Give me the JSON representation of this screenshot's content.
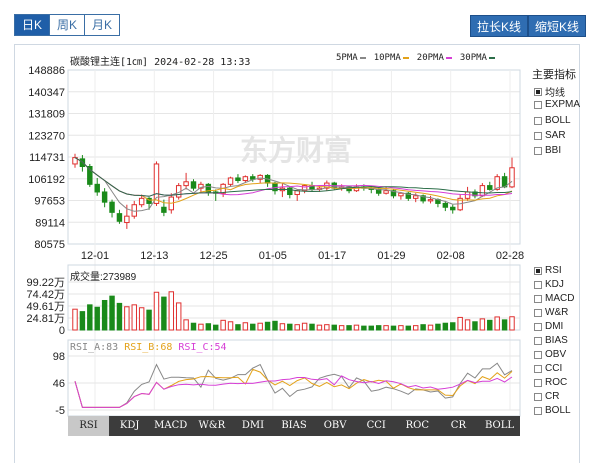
{
  "tabs": [
    {
      "label": "日K",
      "active": true
    },
    {
      "label": "周K",
      "active": false
    },
    {
      "label": "月K",
      "active": false
    }
  ],
  "buttons": {
    "stretch": "拉长K线",
    "shrink": "缩短K线"
  },
  "header": {
    "title": "碳酸锂主连[1㎝] 2024-02-28 13:33"
  },
  "ma_legend": [
    {
      "label": "5PMA",
      "color": "#888888"
    },
    {
      "label": "10PMA",
      "color": "#e3a21a"
    },
    {
      "label": "20PMA",
      "color": "#d63fd6"
    },
    {
      "label": "30PMA",
      "color": "#2c6e49"
    }
  ],
  "watermark": "东方财富",
  "indicators_panel": {
    "title": "主要指标",
    "items": [
      {
        "label": "均线",
        "checked": true
      },
      {
        "label": "EXPMA",
        "checked": false
      },
      {
        "label": "BOLL",
        "checked": false
      },
      {
        "label": "SAR",
        "checked": false
      },
      {
        "label": "BBI",
        "checked": false
      }
    ]
  },
  "sub_indicators": [
    {
      "label": "RSI",
      "checked": true
    },
    {
      "label": "KDJ",
      "checked": false
    },
    {
      "label": "MACD",
      "checked": false
    },
    {
      "label": "W&R",
      "checked": false
    },
    {
      "label": "DMI",
      "checked": false
    },
    {
      "label": "BIAS",
      "checked": false
    },
    {
      "label": "OBV",
      "checked": false
    },
    {
      "label": "CCI",
      "checked": false
    },
    {
      "label": "ROC",
      "checked": false
    },
    {
      "label": "CR",
      "checked": false
    },
    {
      "label": "BOLL",
      "checked": false
    }
  ],
  "indicator_tabs": [
    "RSI",
    "KDJ",
    "MACD",
    "W&R",
    "DMI",
    "BIAS",
    "OBV",
    "CCI",
    "ROC",
    "CR",
    "BOLL"
  ],
  "active_indicator_tab": "RSI",
  "rsi_legend": [
    {
      "label": "RSI_A:83",
      "color": "#888888"
    },
    {
      "label": "RSI_B:68",
      "color": "#e3a21a"
    },
    {
      "label": "RSI_C:54",
      "color": "#d63fd6"
    }
  ],
  "volume_label": "成交量:273989",
  "chart_data": {
    "type": "candlestick",
    "price_ticks": [
      "148886",
      "140347",
      "131809",
      "123270",
      "114731",
      "106192",
      "97653",
      "89114",
      "80575"
    ],
    "price_range": [
      80575,
      148886
    ],
    "date_ticks": [
      "12-01",
      "12-13",
      "12-25",
      "01-05",
      "01-17",
      "01-29",
      "02-08",
      "02-28"
    ],
    "volume_ticks": [
      "99.22万",
      "74.42万",
      "49.61万",
      "24.81万",
      "0"
    ],
    "volume_range": [
      0,
      992200
    ],
    "rsi_ticks": [
      "98",
      "46",
      "-5"
    ],
    "rsi_range": [
      -5,
      98
    ],
    "candles": [
      {
        "o": 112000,
        "c": 114500,
        "h": 116000,
        "l": 110500,
        "v": 430000
      },
      {
        "o": 114000,
        "c": 111000,
        "h": 115500,
        "l": 109000,
        "v": 380000
      },
      {
        "o": 111000,
        "c": 104000,
        "h": 112000,
        "l": 103000,
        "v": 520000
      },
      {
        "o": 104000,
        "c": 101000,
        "h": 106500,
        "l": 99500,
        "v": 470000
      },
      {
        "o": 101000,
        "c": 97000,
        "h": 102500,
        "l": 95000,
        "v": 610000
      },
      {
        "o": 97000,
        "c": 93000,
        "h": 98000,
        "l": 91000,
        "v": 700000
      },
      {
        "o": 92500,
        "c": 89500,
        "h": 94000,
        "l": 88500,
        "v": 550000
      },
      {
        "o": 89000,
        "c": 91500,
        "h": 96000,
        "l": 86500,
        "v": 480000
      },
      {
        "o": 91500,
        "c": 96000,
        "h": 97500,
        "l": 90500,
        "v": 520000
      },
      {
        "o": 96000,
        "c": 98500,
        "h": 100000,
        "l": 95000,
        "v": 460000
      },
      {
        "o": 98500,
        "c": 96500,
        "h": 99000,
        "l": 94000,
        "v": 410000
      },
      {
        "o": 96500,
        "c": 112000,
        "h": 113000,
        "l": 95500,
        "v": 780000
      },
      {
        "o": 95000,
        "c": 93000,
        "h": 98000,
        "l": 91500,
        "v": 680000
      },
      {
        "o": 94000,
        "c": 99000,
        "h": 100500,
        "l": 92500,
        "v": 790000
      },
      {
        "o": 99000,
        "c": 103500,
        "h": 104500,
        "l": 98000,
        "v": 560000
      },
      {
        "o": 103500,
        "c": 105000,
        "h": 108500,
        "l": 102000,
        "v": 210000
      },
      {
        "o": 105000,
        "c": 102500,
        "h": 106000,
        "l": 101500,
        "v": 140000
      },
      {
        "o": 102500,
        "c": 104000,
        "h": 105000,
        "l": 100500,
        "v": 120000
      },
      {
        "o": 104000,
        "c": 101000,
        "h": 104500,
        "l": 99500,
        "v": 130000
      },
      {
        "o": 101000,
        "c": 100500,
        "h": 102000,
        "l": 97500,
        "v": 100000
      },
      {
        "o": 100500,
        "c": 104000,
        "h": 104500,
        "l": 99000,
        "v": 200000
      },
      {
        "o": 104000,
        "c": 106500,
        "h": 107000,
        "l": 103000,
        "v": 170000
      },
      {
        "o": 106500,
        "c": 105500,
        "h": 108000,
        "l": 104500,
        "v": 110000
      },
      {
        "o": 105500,
        "c": 107000,
        "h": 107500,
        "l": 104500,
        "v": 150000
      },
      {
        "o": 107000,
        "c": 106000,
        "h": 108000,
        "l": 105000,
        "v": 120000
      },
      {
        "o": 106000,
        "c": 107500,
        "h": 108000,
        "l": 104500,
        "v": 140000
      },
      {
        "o": 107500,
        "c": 104500,
        "h": 108000,
        "l": 103000,
        "v": 160000
      },
      {
        "o": 104500,
        "c": 101500,
        "h": 105000,
        "l": 100000,
        "v": 180000
      },
      {
        "o": 101500,
        "c": 102500,
        "h": 104500,
        "l": 99000,
        "v": 130000
      },
      {
        "o": 102500,
        "c": 100000,
        "h": 103000,
        "l": 98500,
        "v": 120000
      },
      {
        "o": 100000,
        "c": 101500,
        "h": 102000,
        "l": 97500,
        "v": 110000
      },
      {
        "o": 101500,
        "c": 103500,
        "h": 104000,
        "l": 100500,
        "v": 140000
      },
      {
        "o": 103500,
        "c": 102000,
        "h": 105000,
        "l": 101000,
        "v": 120000
      },
      {
        "o": 102000,
        "c": 102500,
        "h": 103500,
        "l": 101000,
        "v": 100000
      },
      {
        "o": 102500,
        "c": 104500,
        "h": 105500,
        "l": 101500,
        "v": 110000
      },
      {
        "o": 104500,
        "c": 102500,
        "h": 105000,
        "l": 102000,
        "v": 100000
      },
      {
        "o": 102500,
        "c": 103000,
        "h": 104000,
        "l": 101500,
        "v": 90000
      },
      {
        "o": 103000,
        "c": 101500,
        "h": 103500,
        "l": 100500,
        "v": 90000
      },
      {
        "o": 101500,
        "c": 103000,
        "h": 104000,
        "l": 101000,
        "v": 100000
      },
      {
        "o": 103000,
        "c": 102500,
        "h": 104000,
        "l": 101500,
        "v": 80000
      },
      {
        "o": 102500,
        "c": 102000,
        "h": 103000,
        "l": 100500,
        "v": 80000
      },
      {
        "o": 102000,
        "c": 100500,
        "h": 102500,
        "l": 99500,
        "v": 90000
      },
      {
        "o": 100500,
        "c": 101500,
        "h": 103000,
        "l": 100000,
        "v": 90000
      },
      {
        "o": 101500,
        "c": 99500,
        "h": 102000,
        "l": 98500,
        "v": 80000
      },
      {
        "o": 99500,
        "c": 100500,
        "h": 101000,
        "l": 98000,
        "v": 90000
      },
      {
        "o": 100500,
        "c": 98500,
        "h": 101000,
        "l": 97500,
        "v": 80000
      },
      {
        "o": 98500,
        "c": 99500,
        "h": 100500,
        "l": 97000,
        "v": 90000
      },
      {
        "o": 99500,
        "c": 97500,
        "h": 100000,
        "l": 96500,
        "v": 110000
      },
      {
        "o": 97500,
        "c": 98000,
        "h": 99500,
        "l": 96500,
        "v": 100000
      },
      {
        "o": 98000,
        "c": 96500,
        "h": 98500,
        "l": 95000,
        "v": 120000
      },
      {
        "o": 96500,
        "c": 95000,
        "h": 97500,
        "l": 93500,
        "v": 140000
      },
      {
        "o": 95000,
        "c": 94000,
        "h": 96000,
        "l": 92500,
        "v": 150000
      },
      {
        "o": 94000,
        "c": 98500,
        "h": 100000,
        "l": 93500,
        "v": 260000
      },
      {
        "o": 98500,
        "c": 101000,
        "h": 103000,
        "l": 97500,
        "v": 210000
      },
      {
        "o": 101000,
        "c": 99500,
        "h": 102000,
        "l": 98500,
        "v": 170000
      },
      {
        "o": 99500,
        "c": 103500,
        "h": 104500,
        "l": 99000,
        "v": 230000
      },
      {
        "o": 103500,
        "c": 102000,
        "h": 105000,
        "l": 101500,
        "v": 200000
      },
      {
        "o": 102000,
        "c": 107000,
        "h": 108000,
        "l": 101500,
        "v": 270000
      },
      {
        "o": 107000,
        "c": 103000,
        "h": 108500,
        "l": 102500,
        "v": 210000
      },
      {
        "o": 103000,
        "c": 110500,
        "h": 114500,
        "l": 102500,
        "v": 273989
      }
    ]
  }
}
